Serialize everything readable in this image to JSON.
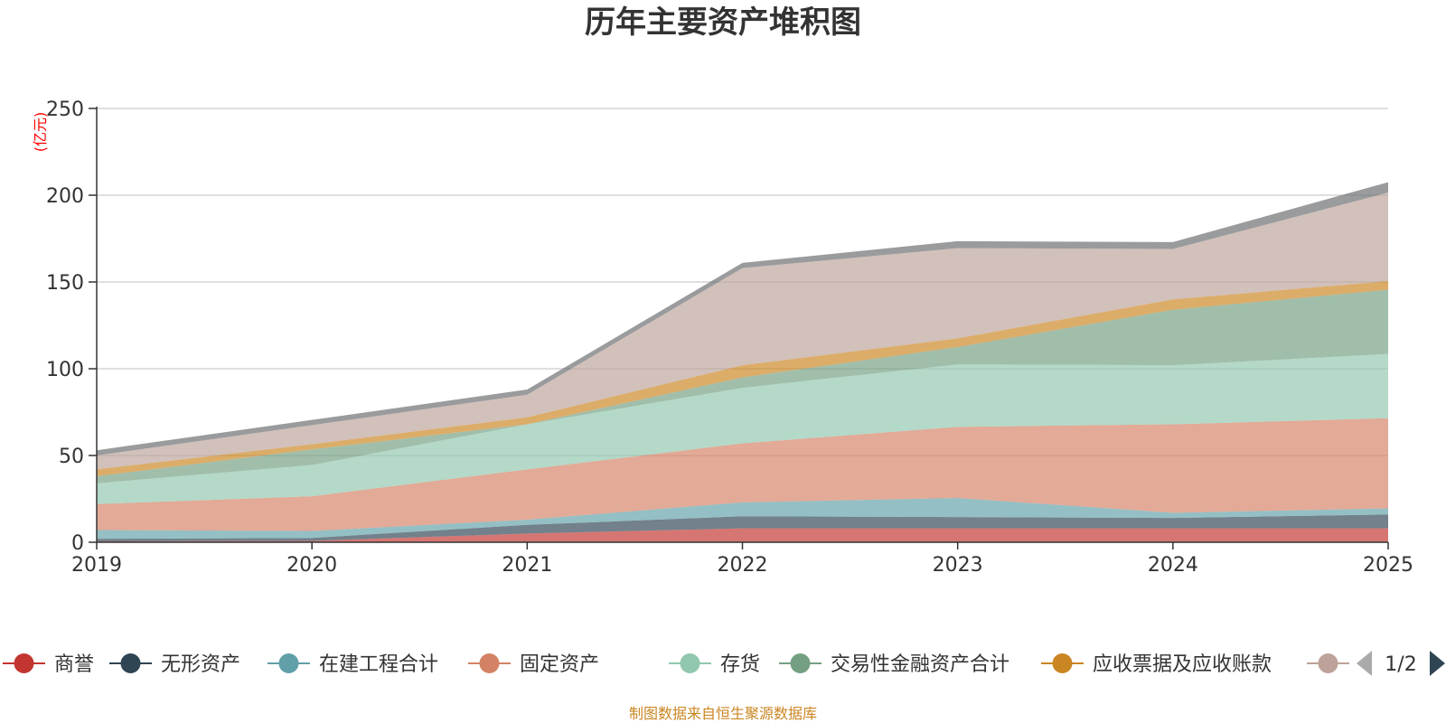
{
  "chart_data": {
    "type": "area",
    "title": "历年主要资产堆积图",
    "unit_label": "(亿元)",
    "categories": [
      "2019",
      "2020",
      "2021",
      "2022",
      "2023",
      "2024",
      "2025"
    ],
    "ylim": [
      0,
      250
    ],
    "yticks": [
      0,
      50,
      100,
      150,
      200,
      250
    ],
    "grid": true,
    "stacked": true,
    "series": [
      {
        "name": "商誉",
        "color": "#c23531",
        "values": [
          0.5,
          0.8,
          5,
          8,
          8,
          8,
          8
        ]
      },
      {
        "name": "无形资产",
        "color": "#2f4554",
        "values": [
          1.5,
          1.7,
          5,
          7,
          6.5,
          6,
          8
        ]
      },
      {
        "name": "在建工程合计",
        "color": "#61a0a8",
        "values": [
          5,
          4,
          3,
          8,
          11,
          3,
          3.5
        ]
      },
      {
        "name": "固定资产",
        "color": "#d48265",
        "values": [
          15,
          20,
          29,
          34,
          41,
          51,
          52
        ]
      },
      {
        "name": "存货",
        "color": "#91c7ae",
        "values": [
          12,
          18,
          26,
          32,
          36,
          34,
          37
        ]
      },
      {
        "name": "交易性金融资产合计",
        "color": "#749f83",
        "values": [
          4,
          9,
          0,
          6,
          10,
          32,
          37
        ]
      },
      {
        "name": "应收票据及应收账款",
        "color": "#ca8622",
        "values": [
          4,
          3,
          4,
          7,
          5,
          6,
          5
        ]
      },
      {
        "name": "",
        "color": "#bda29a",
        "values": [
          8,
          11,
          13,
          56,
          52,
          29,
          51
        ]
      },
      {
        "name": "",
        "color": "#6e7074",
        "values": [
          3,
          3,
          3,
          3,
          4,
          4,
          6
        ]
      }
    ],
    "legend": {
      "position": "bottom",
      "page": "1/2",
      "items": [
        {
          "name": "商誉",
          "color": "#c23531"
        },
        {
          "name": "无形资产",
          "color": "#2f4554"
        },
        {
          "name": "在建工程合计",
          "color": "#61a0a8"
        },
        {
          "name": "固定资产",
          "color": "#d48265"
        },
        {
          "name": "存货",
          "color": "#91c7ae"
        },
        {
          "name": "交易性金融资产合计",
          "color": "#749f83"
        },
        {
          "name": "应收票据及应收账款",
          "color": "#ca8622"
        },
        {
          "name": "",
          "color": "#bda29a"
        }
      ]
    },
    "source": "制图数据来自恒生聚源数据库"
  }
}
